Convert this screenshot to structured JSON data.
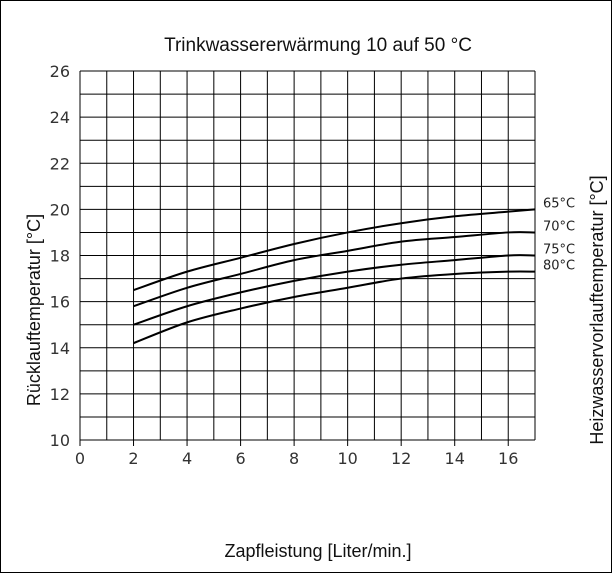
{
  "chart_data": {
    "type": "line",
    "title": "Trinkwassererwärmung 10 auf 50 °C",
    "xlabel": "Zapfleistung [Liter/min.]",
    "ylabel": "Rücklauftemperatur [°C]",
    "y2label": "Heizwasservorlauftemperatur [°C]",
    "xlim": [
      0,
      17
    ],
    "ylim": [
      10,
      26
    ],
    "x_ticks": [
      0,
      2,
      4,
      6,
      8,
      10,
      12,
      14,
      16
    ],
    "y_ticks": [
      10,
      12,
      14,
      16,
      18,
      20,
      22,
      24,
      26
    ],
    "grid": true,
    "series": [
      {
        "name": "65°C",
        "x": [
          2,
          4,
          6,
          8,
          10,
          12,
          14,
          16,
          17
        ],
        "values": [
          16.5,
          17.3,
          17.9,
          18.5,
          19.0,
          19.4,
          19.7,
          19.9,
          20.0
        ]
      },
      {
        "name": "70°C",
        "x": [
          2,
          4,
          6,
          8,
          10,
          12,
          14,
          16,
          17
        ],
        "values": [
          15.8,
          16.6,
          17.2,
          17.8,
          18.2,
          18.6,
          18.8,
          19.0,
          19.0
        ]
      },
      {
        "name": "75°C",
        "x": [
          2,
          4,
          6,
          8,
          10,
          12,
          14,
          16,
          17
        ],
        "values": [
          15.0,
          15.8,
          16.4,
          16.9,
          17.3,
          17.6,
          17.8,
          18.0,
          18.0
        ]
      },
      {
        "name": "80°C",
        "x": [
          2,
          4,
          6,
          8,
          10,
          12,
          14,
          16,
          17
        ],
        "values": [
          14.2,
          15.1,
          15.7,
          16.2,
          16.6,
          17.0,
          17.2,
          17.3,
          17.3
        ]
      }
    ]
  }
}
